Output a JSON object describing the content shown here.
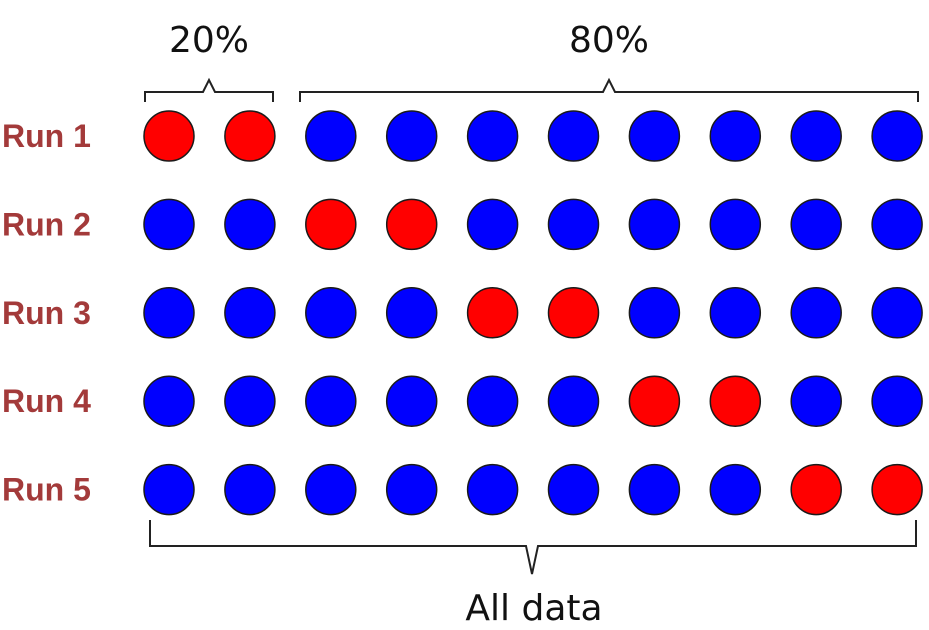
{
  "labels": {
    "test_fraction": "20%",
    "train_fraction": "80%",
    "all_data": "All data"
  },
  "runs": [
    {
      "label": "Run 1",
      "points": [
        "test",
        "test",
        "train",
        "train",
        "train",
        "train",
        "train",
        "train",
        "train",
        "train"
      ]
    },
    {
      "label": "Run 2",
      "points": [
        "train",
        "train",
        "test",
        "test",
        "train",
        "train",
        "train",
        "train",
        "train",
        "train"
      ]
    },
    {
      "label": "Run 3",
      "points": [
        "train",
        "train",
        "train",
        "train",
        "test",
        "test",
        "train",
        "train",
        "train",
        "train"
      ]
    },
    {
      "label": "Run 4",
      "points": [
        "train",
        "train",
        "train",
        "train",
        "train",
        "train",
        "test",
        "test",
        "train",
        "train"
      ]
    },
    {
      "label": "Run 5",
      "points": [
        "train",
        "train",
        "train",
        "train",
        "train",
        "train",
        "train",
        "train",
        "test",
        "test"
      ]
    }
  ],
  "colors": {
    "test": "#ff0000",
    "train": "#0000ff",
    "run_label": "#a33a3a"
  }
}
